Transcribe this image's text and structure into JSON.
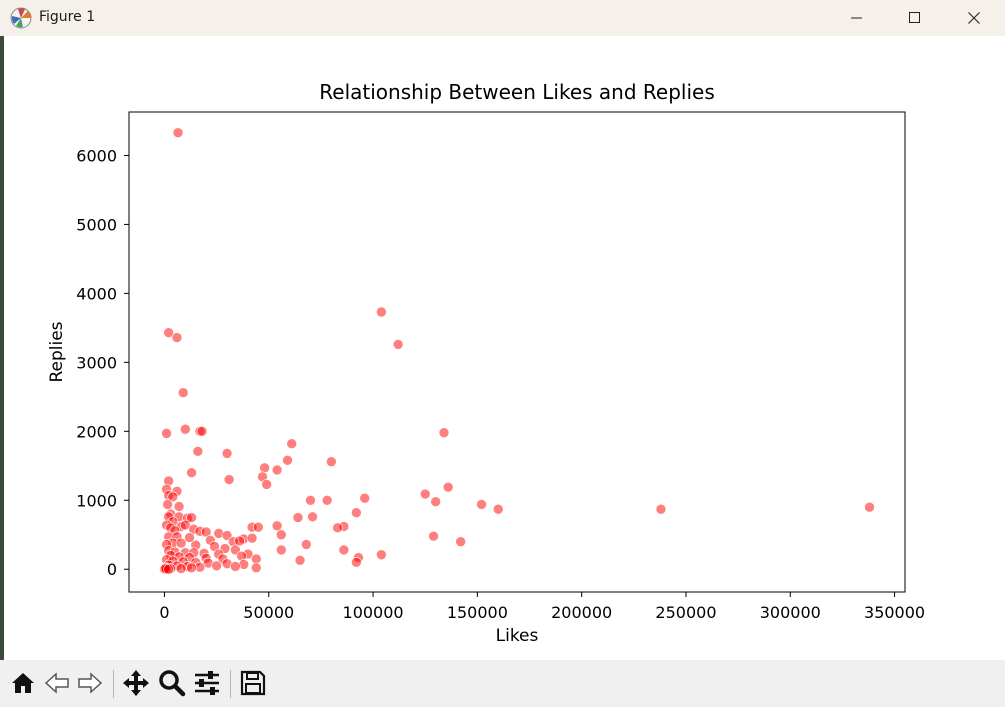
{
  "window": {
    "title": "Figure 1"
  },
  "toolbar": {
    "buttons": [
      "home-icon",
      "back-icon",
      "forward-icon",
      "pan-icon",
      "zoom-icon",
      "configure-subplots-icon",
      "save-icon"
    ]
  },
  "colors": {
    "point": "#ff0000",
    "titlebar": "#f6f0ea",
    "toolbar": "#f0f0f0"
  },
  "chart_data": {
    "type": "scatter",
    "title": "Relationship Between Likes and Replies",
    "xlabel": "Likes",
    "ylabel": "Replies",
    "xlim": [
      -17000,
      355000
    ],
    "ylim": [
      -330,
      6630
    ],
    "xticks": [
      0,
      50000,
      100000,
      150000,
      200000,
      250000,
      300000,
      350000
    ],
    "yticks": [
      0,
      1000,
      2000,
      3000,
      4000,
      5000,
      6000
    ],
    "grid": false,
    "legend": false,
    "point_color": "#ff0000",
    "point_alpha": 0.5,
    "points": [
      [
        6500,
        6330
      ],
      [
        2000,
        3430
      ],
      [
        6000,
        3360
      ],
      [
        104000,
        3730
      ],
      [
        112000,
        3260
      ],
      [
        9000,
        2560
      ],
      [
        1000,
        1970
      ],
      [
        10000,
        2030
      ],
      [
        17000,
        2000
      ],
      [
        18000,
        2000
      ],
      [
        134000,
        1980
      ],
      [
        61000,
        1820
      ],
      [
        16000,
        1710
      ],
      [
        30000,
        1680
      ],
      [
        59000,
        1580
      ],
      [
        80000,
        1560
      ],
      [
        48000,
        1470
      ],
      [
        54000,
        1440
      ],
      [
        13000,
        1400
      ],
      [
        47000,
        1340
      ],
      [
        31000,
        1300
      ],
      [
        2000,
        1280
      ],
      [
        49000,
        1230
      ],
      [
        136000,
        1190
      ],
      [
        1000,
        1160
      ],
      [
        6000,
        1130
      ],
      [
        2000,
        1070
      ],
      [
        4000,
        1050
      ],
      [
        125000,
        1090
      ],
      [
        96000,
        1030
      ],
      [
        130000,
        980
      ],
      [
        70000,
        1000
      ],
      [
        78000,
        1000
      ],
      [
        152000,
        940
      ],
      [
        160000,
        870
      ],
      [
        238000,
        870
      ],
      [
        338000,
        900
      ],
      [
        1500,
        940
      ],
      [
        7000,
        910
      ],
      [
        92000,
        820
      ],
      [
        3000,
        800
      ],
      [
        2000,
        760
      ],
      [
        7000,
        760
      ],
      [
        11000,
        740
      ],
      [
        13000,
        750
      ],
      [
        64000,
        750
      ],
      [
        71000,
        760
      ],
      [
        4000,
        690
      ],
      [
        1000,
        640
      ],
      [
        8000,
        620
      ],
      [
        10000,
        640
      ],
      [
        86000,
        620
      ],
      [
        83000,
        600
      ],
      [
        54000,
        630
      ],
      [
        42000,
        610
      ],
      [
        45000,
        610
      ],
      [
        3000,
        600
      ],
      [
        5000,
        560
      ],
      [
        14000,
        580
      ],
      [
        17000,
        550
      ],
      [
        20000,
        540
      ],
      [
        26000,
        520
      ],
      [
        129000,
        480
      ],
      [
        56000,
        500
      ],
      [
        30000,
        490
      ],
      [
        38000,
        440
      ],
      [
        42000,
        450
      ],
      [
        2000,
        470
      ],
      [
        6000,
        470
      ],
      [
        12000,
        460
      ],
      [
        22000,
        420
      ],
      [
        142000,
        400
      ],
      [
        33000,
        400
      ],
      [
        36000,
        410
      ],
      [
        68000,
        360
      ],
      [
        4000,
        380
      ],
      [
        8000,
        380
      ],
      [
        1000,
        360
      ],
      [
        15000,
        350
      ],
      [
        24000,
        330
      ],
      [
        29000,
        300
      ],
      [
        56000,
        280
      ],
      [
        86000,
        280
      ],
      [
        34000,
        280
      ],
      [
        2000,
        270
      ],
      [
        5000,
        250
      ],
      [
        10000,
        240
      ],
      [
        14000,
        240
      ],
      [
        19000,
        230
      ],
      [
        26000,
        220
      ],
      [
        104000,
        210
      ],
      [
        40000,
        220
      ],
      [
        3000,
        200
      ],
      [
        7000,
        180
      ],
      [
        12000,
        170
      ],
      [
        20000,
        160
      ],
      [
        28000,
        150
      ],
      [
        37000,
        190
      ],
      [
        44000,
        150
      ],
      [
        93000,
        170
      ],
      [
        65000,
        130
      ],
      [
        92000,
        100
      ],
      [
        1000,
        140
      ],
      [
        4000,
        120
      ],
      [
        9000,
        110
      ],
      [
        15000,
        100
      ],
      [
        21000,
        90
      ],
      [
        30000,
        80
      ],
      [
        38000,
        70
      ],
      [
        2000,
        60
      ],
      [
        6000,
        50
      ],
      [
        11000,
        40
      ],
      [
        17000,
        30
      ],
      [
        25000,
        50
      ],
      [
        34000,
        40
      ],
      [
        44000,
        20
      ],
      [
        500,
        20
      ],
      [
        3000,
        10
      ],
      [
        8000,
        10
      ],
      [
        13000,
        20
      ],
      [
        0,
        0
      ],
      [
        0,
        5
      ],
      [
        1000,
        0
      ],
      [
        500,
        10
      ],
      [
        2000,
        0
      ]
    ]
  }
}
